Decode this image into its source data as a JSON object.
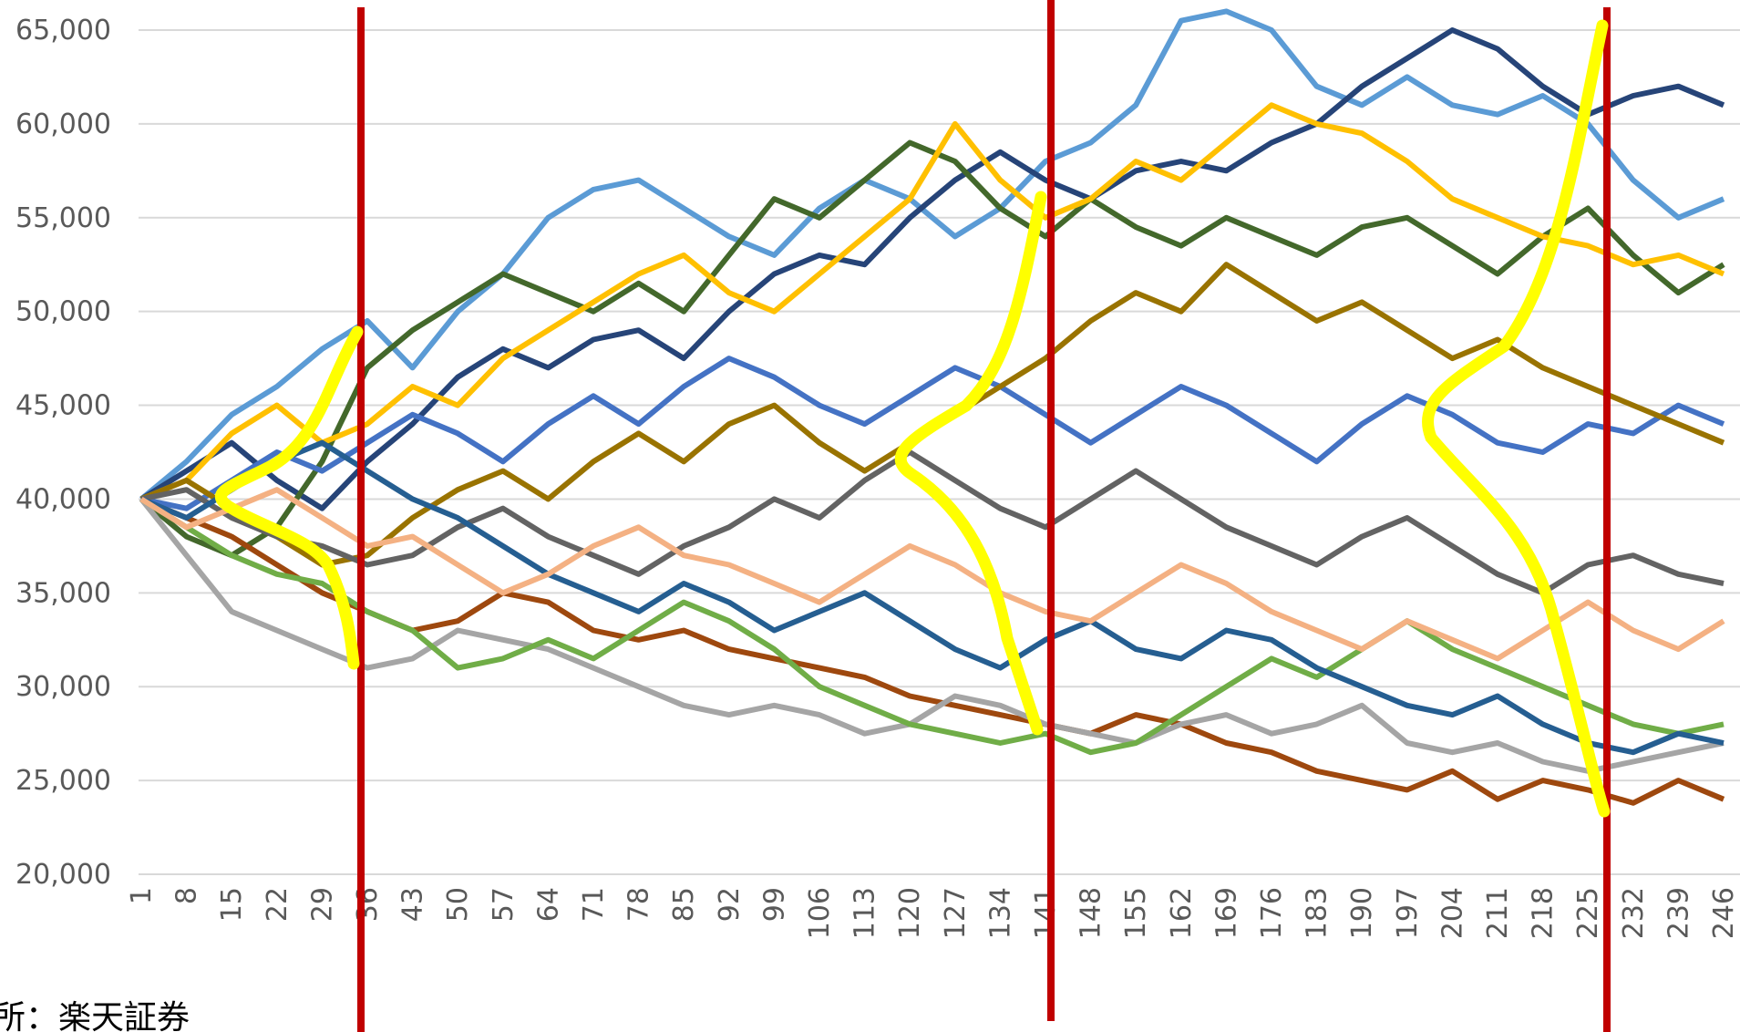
{
  "chart_data": {
    "type": "line",
    "source": "所：楽天証券",
    "categories": [
      "1",
      "8",
      "15",
      "22",
      "29",
      "36",
      "43",
      "50",
      "57",
      "64",
      "71",
      "78",
      "85",
      "92",
      "99",
      "106",
      "113",
      "120",
      "127",
      "134",
      "141",
      "148",
      "155",
      "162",
      "169",
      "176",
      "183",
      "190",
      "197",
      "204",
      "211",
      "218",
      "225",
      "232",
      "239",
      "246"
    ],
    "ylim": [
      20000,
      65000
    ],
    "yticks": [
      {
        "value": 20000,
        "label": "20,000"
      },
      {
        "value": 25000,
        "label": "25,000"
      },
      {
        "value": 30000,
        "label": "30,000"
      },
      {
        "value": 35000,
        "label": "35,000"
      },
      {
        "value": 40000,
        "label": "40,000"
      },
      {
        "value": 45000,
        "label": "45,000"
      },
      {
        "value": 50000,
        "label": "50,000"
      },
      {
        "value": 55000,
        "label": "55,000"
      },
      {
        "value": 60000,
        "label": "60,000"
      },
      {
        "value": 65000,
        "label": "65,000"
      }
    ],
    "grid": true,
    "series": [
      {
        "color": "#5b9bd5",
        "values": [
          40000,
          42000,
          44500,
          46000,
          48000,
          49500,
          47000,
          50000,
          52000,
          55000,
          56500,
          57000,
          55500,
          54000,
          53000,
          55500,
          57000,
          56000,
          54000,
          55500,
          58000,
          59000,
          61000,
          65500,
          66000,
          65000,
          62000,
          61000,
          62500,
          61000,
          60500,
          61500,
          60000,
          57000,
          55000,
          56000
        ]
      },
      {
        "color": "#264478",
        "values": [
          40000,
          41500,
          43000,
          41000,
          39500,
          42000,
          44000,
          46500,
          48000,
          47000,
          48500,
          49000,
          47500,
          50000,
          52000,
          53000,
          52500,
          55000,
          57000,
          58500,
          57000,
          56000,
          57500,
          58000,
          57500,
          59000,
          60000,
          62000,
          63500,
          65000,
          64000,
          62000,
          60500,
          61500,
          62000,
          61000
        ]
      },
      {
        "color": "#43682b",
        "values": [
          40000,
          38000,
          37000,
          38500,
          42000,
          47000,
          49000,
          50500,
          52000,
          51000,
          50000,
          51500,
          50000,
          53000,
          56000,
          55000,
          57000,
          59000,
          58000,
          55500,
          54000,
          56000,
          54500,
          53500,
          55000,
          54000,
          53000,
          54500,
          55000,
          53500,
          52000,
          54000,
          55500,
          53000,
          51000,
          52500
        ]
      },
      {
        "color": "#9e480e",
        "values": [
          40000,
          39000,
          38000,
          36500,
          35000,
          34000,
          33000,
          33500,
          35000,
          34500,
          33000,
          32500,
          33000,
          32000,
          31500,
          31000,
          30500,
          29500,
          29000,
          28500,
          28000,
          27500,
          28500,
          28000,
          27000,
          26500,
          25500,
          25000,
          24500,
          25500,
          24000,
          25000,
          24500,
          23800,
          25000,
          24000
        ]
      },
      {
        "color": "#a5a5a5",
        "values": [
          40000,
          37000,
          34000,
          33000,
          32000,
          31000,
          31500,
          33000,
          32500,
          32000,
          31000,
          30000,
          29000,
          28500,
          29000,
          28500,
          27500,
          28000,
          29500,
          29000,
          28000,
          27500,
          27000,
          28000,
          28500,
          27500,
          28000,
          29000,
          27000,
          26500,
          27000,
          26000,
          25500,
          26000,
          26500,
          27000
        ]
      },
      {
        "color": "#ffc000",
        "values": [
          40000,
          41000,
          43500,
          45000,
          43000,
          44000,
          46000,
          45000,
          47500,
          49000,
          50500,
          52000,
          53000,
          51000,
          50000,
          52000,
          54000,
          56000,
          60000,
          57000,
          55000,
          56000,
          58000,
          57000,
          59000,
          61000,
          60000,
          59500,
          58000,
          56000,
          55000,
          54000,
          53500,
          52500,
          53000,
          52000
        ]
      },
      {
        "color": "#4472c4",
        "values": [
          40000,
          39500,
          41000,
          42500,
          41500,
          43000,
          44500,
          43500,
          42000,
          44000,
          45500,
          44000,
          46000,
          47500,
          46500,
          45000,
          44000,
          45500,
          47000,
          46000,
          44500,
          43000,
          44500,
          46000,
          45000,
          43500,
          42000,
          44000,
          45500,
          44500,
          43000,
          42500,
          44000,
          43500,
          45000,
          44000
        ]
      },
      {
        "color": "#70ad47",
        "values": [
          40000,
          38500,
          37000,
          36000,
          35500,
          34000,
          33000,
          31000,
          31500,
          32500,
          31500,
          33000,
          34500,
          33500,
          32000,
          30000,
          29000,
          28000,
          27500,
          27000,
          27500,
          26500,
          27000,
          28500,
          30000,
          31500,
          30500,
          32000,
          33500,
          32000,
          31000,
          30000,
          29000,
          28000,
          27500,
          28000
        ]
      },
      {
        "color": "#997300",
        "values": [
          40000,
          41000,
          39500,
          38000,
          36500,
          37000,
          39000,
          40500,
          41500,
          40000,
          42000,
          43500,
          42000,
          44000,
          45000,
          43000,
          41500,
          43000,
          44500,
          46000,
          47500,
          49500,
          51000,
          50000,
          52500,
          51000,
          49500,
          50500,
          49000,
          47500,
          48500,
          47000,
          46000,
          45000,
          44000,
          43000
        ]
      },
      {
        "color": "#636363",
        "values": [
          40000,
          40500,
          39000,
          38000,
          37500,
          36500,
          37000,
          38500,
          39500,
          38000,
          37000,
          36000,
          37500,
          38500,
          40000,
          39000,
          41000,
          42500,
          41000,
          39500,
          38500,
          40000,
          41500,
          40000,
          38500,
          37500,
          36500,
          38000,
          39000,
          37500,
          36000,
          35000,
          36500,
          37000,
          36000,
          35500
        ]
      },
      {
        "color": "#255e91",
        "values": [
          40000,
          39000,
          40500,
          42000,
          43000,
          41500,
          40000,
          39000,
          37500,
          36000,
          35000,
          34000,
          35500,
          34500,
          33000,
          34000,
          35000,
          33500,
          32000,
          31000,
          32500,
          33500,
          32000,
          31500,
          33000,
          32500,
          31000,
          30000,
          29000,
          28500,
          29500,
          28000,
          27000,
          26500,
          27500,
          27000
        ]
      },
      {
        "color": "#f4b183",
        "values": [
          40000,
          38500,
          39500,
          40500,
          39000,
          37500,
          38000,
          36500,
          35000,
          36000,
          37500,
          38500,
          37000,
          36500,
          35500,
          34500,
          36000,
          37500,
          36500,
          35000,
          34000,
          33500,
          35000,
          36500,
          35500,
          34000,
          33000,
          32000,
          33500,
          32500,
          31500,
          33000,
          34500,
          33000,
          32000,
          33500
        ]
      }
    ]
  }
}
